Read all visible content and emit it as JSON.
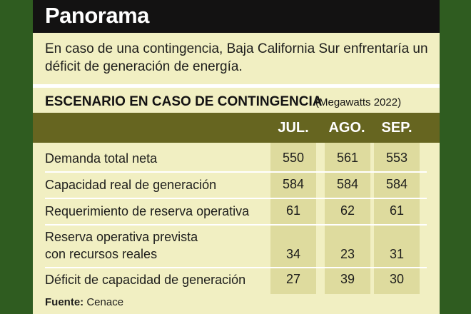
{
  "header": {
    "title": "Panorama"
  },
  "lead": "En caso de una contingencia, Baja California Sur enfrentaría un déficit de generación de energía.",
  "section": {
    "title": "ESCENARIO EN CASO DE CONTINGENCIA",
    "unit": "(Megawatts 2022)"
  },
  "table": {
    "columns": [
      "JUL.",
      "AGO.",
      "SEP."
    ],
    "rows": [
      {
        "label": "Demanda total neta",
        "values": [
          "550",
          "561",
          "553"
        ]
      },
      {
        "label": "Capacidad real de generación",
        "values": [
          "584",
          "584",
          "584"
        ]
      },
      {
        "label": "Requerimiento de reserva operativa",
        "values": [
          "61",
          "62",
          "61"
        ]
      },
      {
        "label_line1": "Reserva operativa prevista",
        "label_line2": "con recursos reales",
        "values": [
          "34",
          "23",
          "31"
        ]
      },
      {
        "label": "Déficit de capacidad de generación",
        "values": [
          "27",
          "39",
          "30"
        ]
      }
    ]
  },
  "source": {
    "label": "Fuente:",
    "value": "Cenace"
  },
  "colors": {
    "background_frame": "#2f5c20",
    "card": "#f1efc2",
    "header": "#131212",
    "band": "#666520",
    "column_fill": "#dedb9e"
  }
}
